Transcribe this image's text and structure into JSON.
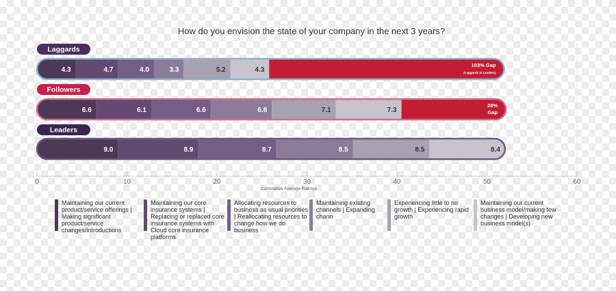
{
  "chart_data": {
    "type": "bar",
    "orientation": "horizontal-stacked",
    "title": "How do you envision the state of your company in the next 3 years?",
    "xlabel": "Cumulative Average Ratings",
    "xlim": [
      0,
      60
    ],
    "x_ticks": [
      "0",
      "10",
      "20",
      "30",
      "40",
      "50",
      "60"
    ],
    "grid": true,
    "categories": [
      "Laggards",
      "Followers",
      "Leaders"
    ],
    "category_colors": [
      "#4a2f5e",
      "#c8204b",
      "#3c2450"
    ],
    "series": [
      {
        "name": "Maintaining our current product/service offerings | Making significant product/service changes/introductions",
        "color": "#4d3858",
        "values": [
          4.3,
          6.6,
          9.0
        ]
      },
      {
        "name": "Maintaining our core insurance systems | Replacing or replaced core insurance systems with Cloud core insurance platforms",
        "color": "#624a72",
        "values": [
          4.7,
          6.1,
          8.9
        ]
      },
      {
        "name": "Allocating resources to business as usual priorities | Reallocating resources to change how we do business",
        "color": "#745e87",
        "values": [
          4.0,
          6.6,
          8.7
        ]
      },
      {
        "name": "Maintaining existing channels | Expanding chann",
        "color": "#8b7d99",
        "values": [
          3.3,
          6.8,
          8.5
        ]
      },
      {
        "name": "Experiencing little to no growth | Experiencing rapid growth",
        "color": "#a8a1b2",
        "values": [
          5.2,
          7.1,
          8.5
        ]
      },
      {
        "name": "Maintaining our current business model/making few changes | Developing new business model(s)",
        "color": "#c8c4cd",
        "values": [
          4.3,
          7.3,
          8.4
        ]
      }
    ],
    "value_labels": [
      [
        "4.3",
        "4.7",
        "4.0",
        "3.3",
        "5.2",
        "4.3"
      ],
      [
        "6.6",
        "6.1",
        "6.6",
        "6.8",
        "7.1",
        "7.3"
      ],
      [
        "9.0",
        "8.9",
        "8.7",
        "8.5",
        "8.5",
        "8.4"
      ]
    ],
    "gaps": [
      {
        "value": 26.1,
        "color": "#c21d33",
        "line1": "103% Gap",
        "line2": "(Laggards to Leaders)"
      },
      {
        "value": 11.6,
        "color": "#c21d33",
        "line1": "28%",
        "line2": "Gap"
      },
      null
    ],
    "bar_outline_colors": [
      "#8fb0cf",
      "#d46a8a",
      "#6e5a80"
    ]
  }
}
